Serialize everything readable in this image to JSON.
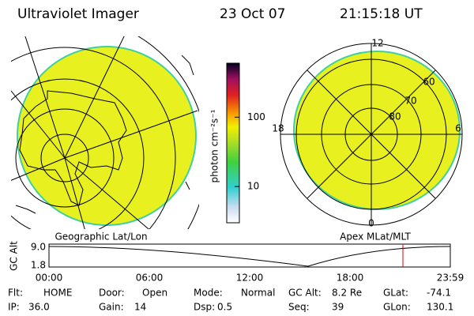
{
  "header": {
    "title": "Ultraviolet Imager",
    "date": "23 Oct 07",
    "time": "21:15:18 UT"
  },
  "geo_panel": {
    "label": "Geographic Lat/Lon"
  },
  "colorbar": {
    "label": "photon cm⁻²s⁻¹",
    "log": true,
    "clim": [
      3,
      600
    ],
    "ticks": [
      100,
      10
    ]
  },
  "polar_panel": {
    "label": "Apex MLat/MLT",
    "mlt_labels": [
      "12",
      "18",
      "6",
      "0"
    ],
    "lat_labels": [
      "60",
      "70",
      "80"
    ]
  },
  "timeline": {
    "ylabel": "GC Alt",
    "yticks": [
      "9.0",
      "1.8"
    ],
    "xticks": [
      "00:00",
      "06:00",
      "12:00",
      "18:00",
      "23:59"
    ]
  },
  "status": [
    [
      {
        "label": "Flt:",
        "value": "HOME"
      },
      {
        "label": "Door:",
        "value": "Open"
      },
      {
        "label": "Mode:",
        "value": "Normal"
      },
      {
        "label": "GC Alt:",
        "value": "8.2 Re"
      },
      {
        "label": "GLat:",
        "value": "-74.1"
      }
    ],
    [
      {
        "label": "IP:",
        "value": "36.0"
      },
      {
        "label": "Gain:",
        "value": "14"
      },
      {
        "label": "Dsp:",
        "value": "0.5"
      },
      {
        "label": "Seq:",
        "value": "39"
      },
      {
        "label": "GLon:",
        "value": "130.1"
      }
    ]
  ]
}
